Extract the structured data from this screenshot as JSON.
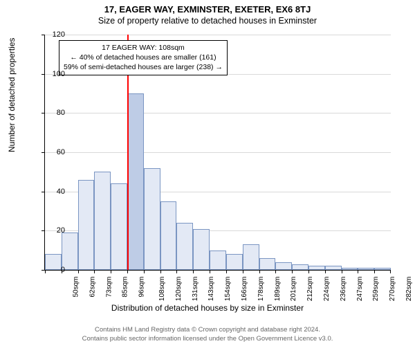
{
  "title": "17, EAGER WAY, EXMINSTER, EXETER, EX6 8TJ",
  "subtitle": "Size of property relative to detached houses in Exminster",
  "chart": {
    "type": "histogram",
    "ylabel": "Number of detached properties",
    "xlabel": "Distribution of detached houses by size in Exminster",
    "ylim": [
      0,
      120
    ],
    "ytick_step": 20,
    "yticks": [
      0,
      20,
      40,
      60,
      80,
      100,
      120
    ],
    "x_categories": [
      "50sqm",
      "62sqm",
      "73sqm",
      "85sqm",
      "96sqm",
      "108sqm",
      "120sqm",
      "131sqm",
      "143sqm",
      "154sqm",
      "166sqm",
      "178sqm",
      "189sqm",
      "201sqm",
      "212sqm",
      "224sqm",
      "236sqm",
      "247sqm",
      "259sqm",
      "270sqm",
      "282sqm"
    ],
    "bar_values": [
      8,
      19,
      46,
      50,
      44,
      90,
      52,
      35,
      24,
      21,
      10,
      8,
      13,
      6,
      4,
      3,
      2,
      2,
      1,
      1,
      1
    ],
    "bar_fill": "#e3e9f5",
    "bar_border": "#7a95c2",
    "bar_highlight_fill": "#becce6",
    "highlight_index": 5,
    "grid_color": "#d9d9d9",
    "background_color": "#ffffff",
    "reference_line": {
      "index": 5,
      "color": "#ff0000"
    },
    "info_box": {
      "line1": "17 EAGER WAY: 108sqm",
      "line2": "← 40% of detached houses are smaller (161)",
      "line3": "59% of semi-detached houses are larger (238) →"
    }
  },
  "footer": {
    "line1": "Contains HM Land Registry data © Crown copyright and database right 2024.",
    "line2": "Contains public sector information licensed under the Open Government Licence v3.0."
  }
}
